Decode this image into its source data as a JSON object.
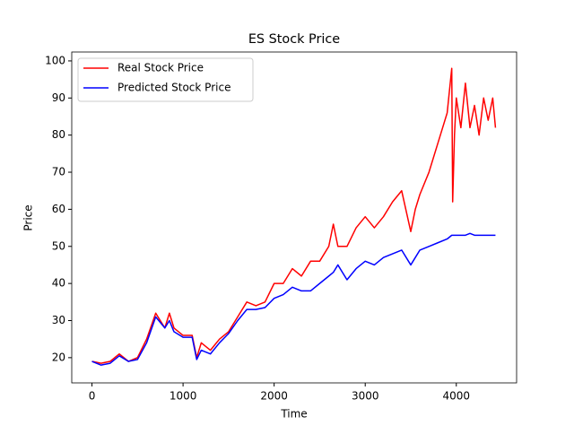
{
  "chart_data": {
    "type": "line",
    "title": "ES Stock Price",
    "x_label": "Time",
    "y_label": "Price",
    "x": [
      0,
      100,
      200,
      300,
      400,
      500,
      600,
      700,
      800,
      850,
      900,
      1000,
      1100,
      1150,
      1200,
      1300,
      1400,
      1500,
      1600,
      1700,
      1800,
      1900,
      2000,
      2100,
      2200,
      2300,
      2400,
      2500,
      2600,
      2650,
      2700,
      2800,
      2900,
      3000,
      3100,
      3200,
      3300,
      3400,
      3500,
      3550,
      3600,
      3700,
      3800,
      3900,
      3950,
      3960,
      3980,
      4000,
      4050,
      4100,
      4150,
      4200,
      4250,
      4300,
      4350,
      4400,
      4430
    ],
    "series": [
      {
        "name": "Real Stock Price",
        "color": "#ff0000",
        "values": [
          19,
          18.5,
          19,
          21,
          19,
          20,
          25,
          32,
          28,
          32,
          28,
          26,
          26,
          20,
          24,
          22,
          25,
          27,
          31,
          35,
          34,
          35,
          40,
          40,
          44,
          42,
          46,
          46,
          50,
          56,
          50,
          50,
          55,
          58,
          55,
          58,
          62,
          65,
          54,
          60,
          64,
          70,
          78,
          86,
          98,
          62,
          80,
          90,
          82,
          94,
          82,
          88,
          80,
          90,
          84,
          90,
          82
        ]
      },
      {
        "name": "Predicted Stock Price",
        "color": "#0000ff",
        "values": [
          19,
          18,
          18.5,
          20.5,
          19,
          19.5,
          24,
          31,
          28,
          30,
          27,
          25.5,
          25.5,
          19.5,
          22,
          21,
          24,
          26.5,
          30,
          33,
          33,
          33.5,
          36,
          37,
          39,
          38,
          38,
          40,
          42,
          43,
          45,
          41,
          44,
          46,
          45,
          47,
          48,
          49,
          45,
          47,
          49,
          50,
          51,
          52,
          53,
          53,
          53,
          53,
          53,
          53,
          53.5,
          53,
          53,
          53,
          53,
          53,
          53
        ]
      }
    ],
    "xlim": [
      -222,
      4662
    ],
    "ylim": [
      13.2,
      102.4
    ],
    "xticks": [
      0,
      1000,
      2000,
      3000,
      4000
    ],
    "yticks": [
      20,
      30,
      40,
      50,
      60,
      70,
      80,
      90,
      100
    ],
    "legend": "upper left"
  }
}
